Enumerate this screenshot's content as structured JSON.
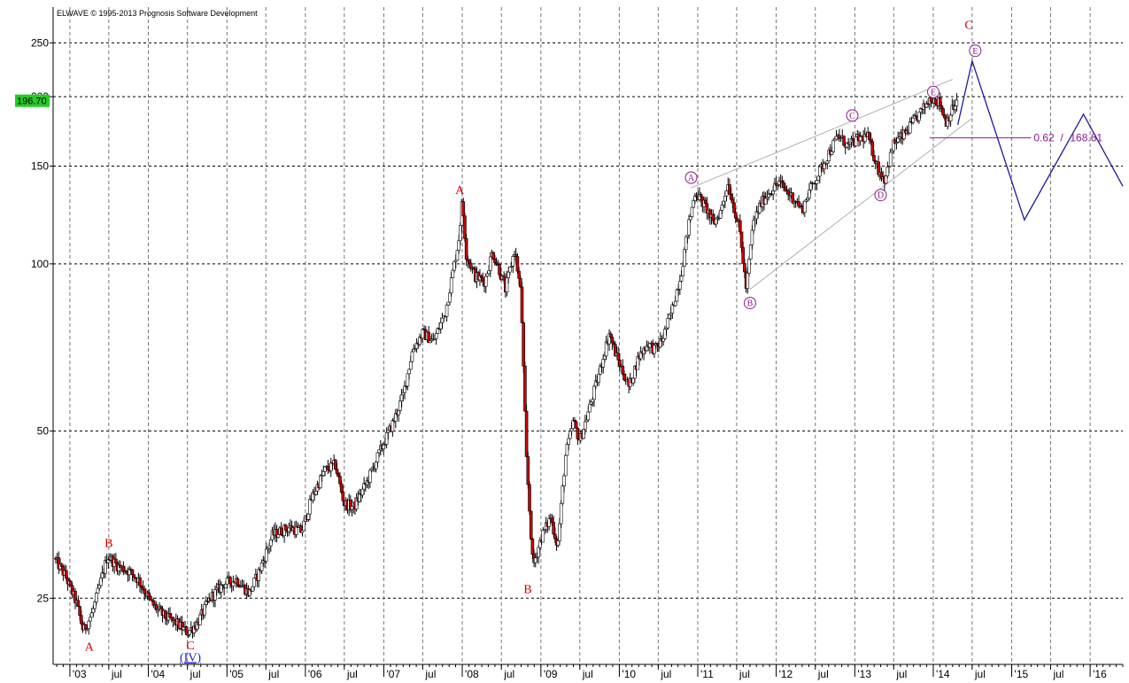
{
  "header": {
    "copyright": "ELWAVE © 1995-2013 Prognosis Software Development"
  },
  "current_price": {
    "label": "196.70",
    "value": 196.7,
    "bg_color": "#22cc22"
  },
  "colors": {
    "up": "#ffffff",
    "down": "#cc0000",
    "wick": "#000000",
    "grid": "#000000",
    "red_label": "#cc0000",
    "purple": "#8b1a8b",
    "projection": "#1a1aa0",
    "channel": "#b0b0b0"
  },
  "chart_data": {
    "type": "candlestick",
    "title": "",
    "xlabel": "",
    "ylabel": "",
    "y_scale": "log",
    "ylim": [
      19,
      290
    ],
    "xlim": [
      "2002-10-15",
      "2016-06-01"
    ],
    "y_ticks": [
      {
        "value": 25,
        "label": "25"
      },
      {
        "value": 50,
        "label": "50"
      },
      {
        "value": 100,
        "label": "100"
      },
      {
        "value": 150,
        "label": "150"
      },
      {
        "value": 200,
        "label": "200"
      },
      {
        "value": 250,
        "label": "250"
      }
    ],
    "x_ticks": [
      {
        "date": "2003-01-01",
        "label": "'03",
        "major": true
      },
      {
        "date": "2003-07-01",
        "label": "jul",
        "major": false
      },
      {
        "date": "2004-01-01",
        "label": "'04",
        "major": true
      },
      {
        "date": "2004-07-01",
        "label": "jul",
        "major": false
      },
      {
        "date": "2005-01-01",
        "label": "'05",
        "major": true
      },
      {
        "date": "2005-07-01",
        "label": "jul",
        "major": false
      },
      {
        "date": "2006-01-01",
        "label": "'06",
        "major": true
      },
      {
        "date": "2006-07-01",
        "label": "jul",
        "major": false
      },
      {
        "date": "2007-01-01",
        "label": "'07",
        "major": true
      },
      {
        "date": "2007-07-01",
        "label": "jul",
        "major": false
      },
      {
        "date": "2008-01-01",
        "label": "'08",
        "major": true
      },
      {
        "date": "2008-07-01",
        "label": "jul",
        "major": false
      },
      {
        "date": "2009-01-01",
        "label": "'09",
        "major": true
      },
      {
        "date": "2009-07-01",
        "label": "jul",
        "major": false
      },
      {
        "date": "2010-01-01",
        "label": "'10",
        "major": true
      },
      {
        "date": "2010-07-01",
        "label": "jul",
        "major": false
      },
      {
        "date": "2011-01-01",
        "label": "'11",
        "major": true
      },
      {
        "date": "2011-07-01",
        "label": "jul",
        "major": false
      },
      {
        "date": "2012-01-01",
        "label": "'12",
        "major": true
      },
      {
        "date": "2012-07-01",
        "label": "jul",
        "major": false
      },
      {
        "date": "2013-01-01",
        "label": "'13",
        "major": true
      },
      {
        "date": "2013-07-01",
        "label": "jul",
        "major": false
      },
      {
        "date": "2014-01-01",
        "label": "'14",
        "major": true
      },
      {
        "date": "2014-07-01",
        "label": "jul",
        "major": false
      },
      {
        "date": "2015-01-01",
        "label": "'15",
        "major": true
      },
      {
        "date": "2015-07-01",
        "label": "jul",
        "major": false
      },
      {
        "date": "2016-01-01",
        "label": "'16",
        "major": true
      }
    ],
    "price_path": [
      [
        "2002-10-20",
        29.5
      ],
      [
        "2002-12-10",
        27.5
      ],
      [
        "2003-02-01",
        24.5
      ],
      [
        "2003-03-05",
        21.8
      ],
      [
        "2003-04-15",
        23.5
      ],
      [
        "2003-05-25",
        26.8
      ],
      [
        "2003-06-25",
        29.8
      ],
      [
        "2003-08-15",
        28.5
      ],
      [
        "2003-10-01",
        28.0
      ],
      [
        "2003-11-15",
        27.0
      ],
      [
        "2004-01-15",
        24.5
      ],
      [
        "2004-03-15",
        23.2
      ],
      [
        "2004-05-15",
        22.5
      ],
      [
        "2004-07-01",
        21.7
      ],
      [
        "2004-08-15",
        22.5
      ],
      [
        "2004-10-15",
        25.0
      ],
      [
        "2004-12-15",
        26.5
      ],
      [
        "2005-02-15",
        27.0
      ],
      [
        "2005-04-15",
        25.5
      ],
      [
        "2005-06-01",
        28.0
      ],
      [
        "2005-08-01",
        32.5
      ],
      [
        "2005-10-15",
        33.5
      ],
      [
        "2005-12-15",
        33.0
      ],
      [
        "2006-02-01",
        38.0
      ],
      [
        "2006-04-01",
        42.5
      ],
      [
        "2006-05-20",
        43.5
      ],
      [
        "2006-07-01",
        37.0
      ],
      [
        "2006-08-15",
        36.5
      ],
      [
        "2006-10-15",
        40.5
      ],
      [
        "2006-12-15",
        46.0
      ],
      [
        "2007-02-15",
        52.0
      ],
      [
        "2007-04-01",
        58.0
      ],
      [
        "2007-05-15",
        70.0
      ],
      [
        "2007-07-01",
        75.0
      ],
      [
        "2007-08-20",
        72.5
      ],
      [
        "2007-10-15",
        82.0
      ],
      [
        "2007-12-15",
        110.0
      ],
      [
        "2008-01-01",
        130.0
      ],
      [
        "2008-01-20",
        104.0
      ],
      [
        "2008-03-01",
        95.0
      ],
      [
        "2008-04-15",
        93.0
      ],
      [
        "2008-05-20",
        105.0
      ],
      [
        "2008-06-20",
        98.0
      ],
      [
        "2008-07-20",
        90.0
      ],
      [
        "2008-09-01",
        106.0
      ],
      [
        "2008-10-01",
        88.0
      ],
      [
        "2008-10-25",
        45.0
      ],
      [
        "2008-11-25",
        28.5
      ],
      [
        "2009-01-01",
        32.0
      ],
      [
        "2009-02-15",
        35.0
      ],
      [
        "2009-03-20",
        31.0
      ],
      [
        "2009-04-25",
        45.0
      ],
      [
        "2009-06-01",
        52.0
      ],
      [
        "2009-07-01",
        48.0
      ],
      [
        "2009-08-15",
        55.0
      ],
      [
        "2009-10-01",
        64.0
      ],
      [
        "2009-11-15",
        75.0
      ],
      [
        "2009-12-20",
        68.0
      ],
      [
        "2010-02-15",
        60.0
      ],
      [
        "2010-04-01",
        68.0
      ],
      [
        "2010-05-15",
        72.0
      ],
      [
        "2010-06-15",
        70.0
      ],
      [
        "2010-07-20",
        73.0
      ],
      [
        "2010-09-01",
        82.0
      ],
      [
        "2010-10-15",
        96.0
      ],
      [
        "2010-11-15",
        115.0
      ],
      [
        "2010-12-20",
        135.0
      ],
      [
        "2011-02-15",
        125.0
      ],
      [
        "2011-03-15",
        118.0
      ],
      [
        "2011-04-20",
        125.0
      ],
      [
        "2011-05-20",
        140.0
      ],
      [
        "2011-06-15",
        128.0
      ],
      [
        "2011-07-15",
        115.0
      ],
      [
        "2011-08-15",
        90.0
      ],
      [
        "2011-09-15",
        118.0
      ],
      [
        "2011-10-20",
        128.0
      ],
      [
        "2011-12-01",
        135.0
      ],
      [
        "2012-01-15",
        140.0
      ],
      [
        "2012-02-20",
        135.0
      ],
      [
        "2012-04-01",
        130.0
      ],
      [
        "2012-05-01",
        125.0
      ],
      [
        "2012-06-01",
        135.0
      ],
      [
        "2012-07-15",
        145.0
      ],
      [
        "2012-09-01",
        158.0
      ],
      [
        "2012-10-15",
        170.0
      ],
      [
        "2012-12-01",
        163.0
      ],
      [
        "2013-01-20",
        168.0
      ],
      [
        "2013-03-01",
        170.0
      ],
      [
        "2013-04-20",
        148.0
      ],
      [
        "2013-05-20",
        142.0
      ],
      [
        "2013-07-01",
        165.0
      ],
      [
        "2013-08-15",
        170.0
      ],
      [
        "2013-10-01",
        180.0
      ],
      [
        "2013-11-15",
        190.0
      ],
      [
        "2013-12-20",
        200.0
      ],
      [
        "2014-02-01",
        195.0
      ],
      [
        "2014-03-01",
        180.0
      ],
      [
        "2014-04-01",
        190.0
      ],
      [
        "2014-04-25",
        196.7
      ]
    ],
    "wave_labels": [
      {
        "date": "2003-04-01",
        "price": 20.5,
        "text": "A",
        "style": "red"
      },
      {
        "date": "2003-07-01",
        "price": 31.5,
        "text": "B",
        "style": "red"
      },
      {
        "date": "2004-07-15",
        "price": 20.6,
        "text": "C",
        "style": "red"
      },
      {
        "date": "2004-07-15",
        "price": 19.6,
        "text": "(IV)",
        "style": "blue"
      },
      {
        "date": "2007-12-20",
        "price": 136.0,
        "text": "A",
        "style": "red"
      },
      {
        "date": "2008-11-01",
        "price": 26.0,
        "text": "B",
        "style": "red"
      },
      {
        "date": "2014-06-15",
        "price": 270.0,
        "text": "C",
        "style": "red"
      },
      {
        "date": "2010-12-01",
        "price": 143.0,
        "text": "A",
        "style": "circle"
      },
      {
        "date": "2011-09-01",
        "price": 85.0,
        "text": "B",
        "style": "circle"
      },
      {
        "date": "2012-12-20",
        "price": 185.0,
        "text": "C",
        "style": "circle"
      },
      {
        "date": "2013-05-01",
        "price": 133.0,
        "text": "D",
        "style": "circle"
      },
      {
        "date": "2014-01-01",
        "price": 204.0,
        "text": "E",
        "style": "circle"
      },
      {
        "date": "2014-07-15",
        "price": 242.0,
        "text": "E",
        "style": "circle"
      }
    ],
    "channel_lines": [
      {
        "from": [
          "2010-12-01",
          137.0
        ],
        "to": [
          "2014-04-01",
          215.0
        ]
      },
      {
        "from": [
          "2011-09-01",
          90.0
        ],
        "to": [
          "2014-07-01",
          183.0
        ]
      }
    ],
    "fib_level": {
      "ratio_label": "0.62",
      "value_label": "168.61",
      "value": 168.61,
      "from_date": "2013-12-15",
      "to_date": "2015-04-01"
    },
    "projection_path": [
      [
        "2014-04-25",
        178.0
      ],
      [
        "2014-07-01",
        232.0
      ],
      [
        "2015-03-01",
        120.0
      ],
      [
        "2015-12-01",
        186.0
      ],
      [
        "2016-06-01",
        138.0
      ]
    ]
  }
}
